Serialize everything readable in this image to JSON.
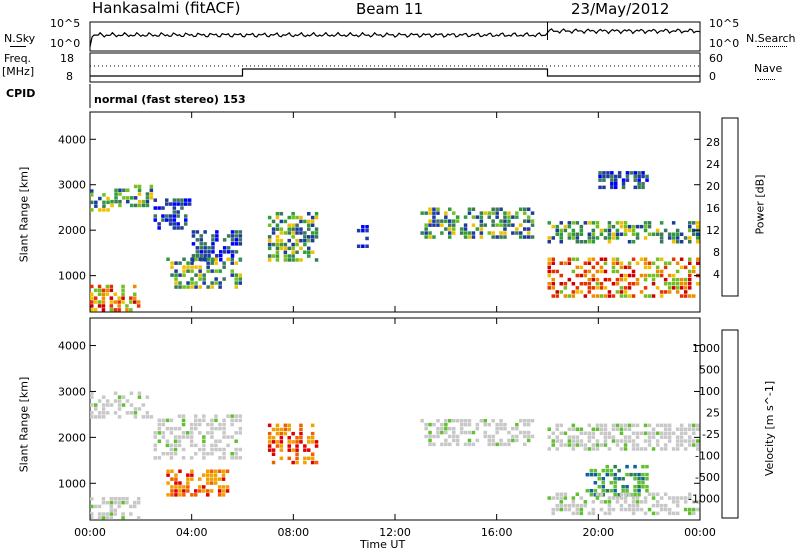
{
  "header": {
    "station": "Hankasalmi (fitACF)",
    "beam": "Beam 11",
    "date": "23/May/2012"
  },
  "panels": {
    "nsky_label": "N.Sky",
    "nsky_ticks": [
      "10^5",
      "10^0"
    ],
    "nsearch_label": "N.Search",
    "nsearch_ticks": [
      "10^5",
      "10^0"
    ],
    "freq_label_1": "Freq.",
    "freq_label_2": "[MHz]",
    "freq_ticks": [
      "18",
      "8"
    ],
    "nave_label": "Nave",
    "nave_ticks": [
      "60",
      "0"
    ],
    "cpid_label": "CPID",
    "cpid_text": "normal (fast stereo) 153"
  },
  "colors": {
    "power": [
      "#0000ff",
      "#1e3c9c",
      "#3a7a5a",
      "#2e9e3a",
      "#74c020",
      "#f0c000",
      "#f08a00",
      "#e83000",
      "#d00000"
    ],
    "velocity": [
      "#2040c0",
      "#1060a0",
      "#2a8050",
      "#60c030",
      "#c8c8c8",
      "#c8c8c8",
      "#f0a000",
      "#f06000",
      "#e00000"
    ],
    "grey": "#c8c8c8"
  },
  "chart_data": [
    {
      "type": "heatmap",
      "name": "power",
      "ylabel": "Slant Range [km]",
      "yticks": [
        "1000",
        "2000",
        "3000",
        "4000"
      ],
      "ylim": [
        200,
        4600
      ],
      "xticks": [
        "00:00",
        "04:00",
        "08:00",
        "12:00",
        "16:00",
        "20:00",
        "00:00"
      ],
      "xlim_hours": [
        0,
        24
      ],
      "colorbar_label": "Power [dB]",
      "colorbar_ticks": [
        "28",
        "24",
        "20",
        "16",
        "12",
        "8",
        "4"
      ],
      "colorbar_range": [
        0,
        30
      ],
      "echo_regions": [
        {
          "t0": 0.0,
          "t1": 0.8,
          "r0": 2400,
          "r1": 2900,
          "level": "mid"
        },
        {
          "t0": 0.8,
          "t1": 2.5,
          "r0": 2500,
          "r1": 3000,
          "level": "mid"
        },
        {
          "t0": 2.5,
          "t1": 4.0,
          "r0": 2000,
          "r1": 2700,
          "level": "low"
        },
        {
          "t0": 4.0,
          "t1": 6.0,
          "r0": 1300,
          "r1": 2000,
          "level": "low"
        },
        {
          "t0": 0.0,
          "t1": 2.0,
          "r0": 200,
          "r1": 800,
          "level": "high"
        },
        {
          "t0": 3.0,
          "t1": 6.0,
          "r0": 700,
          "r1": 1400,
          "level": "mid"
        },
        {
          "t0": 7.0,
          "t1": 9.0,
          "r0": 1300,
          "r1": 2400,
          "level": "mid"
        },
        {
          "t0": 10.5,
          "t1": 11.0,
          "r0": 1600,
          "r1": 2200,
          "level": "low"
        },
        {
          "t0": 13.0,
          "t1": 17.5,
          "r0": 1800,
          "r1": 2500,
          "level": "mid"
        },
        {
          "t0": 18.0,
          "t1": 24.0,
          "r0": 1700,
          "r1": 2200,
          "level": "mid"
        },
        {
          "t0": 18.0,
          "t1": 24.0,
          "r0": 500,
          "r1": 1400,
          "level": "high"
        },
        {
          "t0": 20.0,
          "t1": 22.0,
          "r0": 2900,
          "r1": 3300,
          "level": "low"
        }
      ]
    },
    {
      "type": "heatmap",
      "name": "velocity",
      "ylabel": "Slant Range [km]",
      "yticks": [
        "1000",
        "2000",
        "3000",
        "4000"
      ],
      "ylim": [
        200,
        4600
      ],
      "xticks": [
        "00:00",
        "04:00",
        "08:00",
        "12:00",
        "16:00",
        "20:00",
        "00:00"
      ],
      "xlabel": "Time UT",
      "xlim_hours": [
        0,
        24
      ],
      "colorbar_label": "Velocity [m s^-1]",
      "colorbar_ticks": [
        "1000",
        "500",
        "100",
        "25",
        "-25",
        "-100",
        "-500",
        "-1000"
      ],
      "echo_regions": [
        {
          "t0": 0.0,
          "t1": 2.5,
          "r0": 2400,
          "r1": 3000,
          "level": "grey"
        },
        {
          "t0": 2.5,
          "t1": 6.0,
          "r0": 1500,
          "r1": 2500,
          "level": "grey"
        },
        {
          "t0": 0.0,
          "t1": 2.0,
          "r0": 200,
          "r1": 700,
          "level": "grey"
        },
        {
          "t0": 3.0,
          "t1": 5.5,
          "r0": 700,
          "r1": 1300,
          "level": "negative"
        },
        {
          "t0": 7.0,
          "t1": 9.0,
          "r0": 1400,
          "r1": 2300,
          "level": "negative"
        },
        {
          "t0": 13.0,
          "t1": 17.5,
          "r0": 1800,
          "r1": 2400,
          "level": "grey"
        },
        {
          "t0": 18.0,
          "t1": 24.0,
          "r0": 1700,
          "r1": 2300,
          "level": "grey"
        },
        {
          "t0": 19.5,
          "t1": 22.0,
          "r0": 700,
          "r1": 1400,
          "level": "positive"
        },
        {
          "t0": 18.0,
          "t1": 24.0,
          "r0": 300,
          "r1": 800,
          "level": "grey"
        }
      ]
    }
  ]
}
